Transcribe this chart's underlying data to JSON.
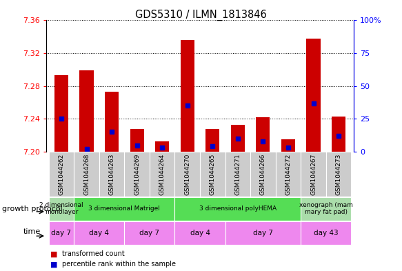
{
  "title": "GDS5310 / ILMN_1813846",
  "samples": [
    "GSM1044262",
    "GSM1044268",
    "GSM1044263",
    "GSM1044269",
    "GSM1044264",
    "GSM1044270",
    "GSM1044265",
    "GSM1044271",
    "GSM1044266",
    "GSM1044272",
    "GSM1044267",
    "GSM1044273"
  ],
  "transformed_count": [
    7.293,
    7.299,
    7.273,
    7.228,
    7.213,
    7.336,
    7.228,
    7.233,
    7.242,
    7.215,
    7.338,
    7.243
  ],
  "percentile_rank": [
    25,
    2,
    15,
    5,
    3,
    35,
    4,
    10,
    8,
    3,
    37,
    12
  ],
  "ymin": 7.2,
  "ymax": 7.36,
  "yticks": [
    7.2,
    7.24,
    7.28,
    7.32,
    7.36
  ],
  "right_yticks": [
    0,
    25,
    50,
    75,
    100
  ],
  "bar_color": "#cc0000",
  "blue_color": "#0000cc",
  "grid_color": "#555555",
  "growth_protocol_groups": [
    {
      "label": "2 dimensional\nmonolayer",
      "start": 0,
      "end": 1,
      "color": "#aaddaa"
    },
    {
      "label": "3 dimensional Matrigel",
      "start": 1,
      "end": 5,
      "color": "#55dd55"
    },
    {
      "label": "3 dimensional polyHEMA",
      "start": 5,
      "end": 10,
      "color": "#55dd55"
    },
    {
      "label": "xenograph (mam\nmary fat pad)",
      "start": 10,
      "end": 12,
      "color": "#aaddaa"
    }
  ],
  "time_groups": [
    {
      "label": "day 7",
      "start": 0,
      "end": 1
    },
    {
      "label": "day 4",
      "start": 1,
      "end": 3
    },
    {
      "label": "day 7",
      "start": 3,
      "end": 5
    },
    {
      "label": "day 4",
      "start": 5,
      "end": 7
    },
    {
      "label": "day 7",
      "start": 7,
      "end": 10
    },
    {
      "label": "day 43",
      "start": 10,
      "end": 12
    }
  ],
  "time_color": "#ee88ee",
  "sample_bg_color": "#cccccc",
  "fig_width": 5.83,
  "fig_height": 3.93,
  "dpi": 100
}
